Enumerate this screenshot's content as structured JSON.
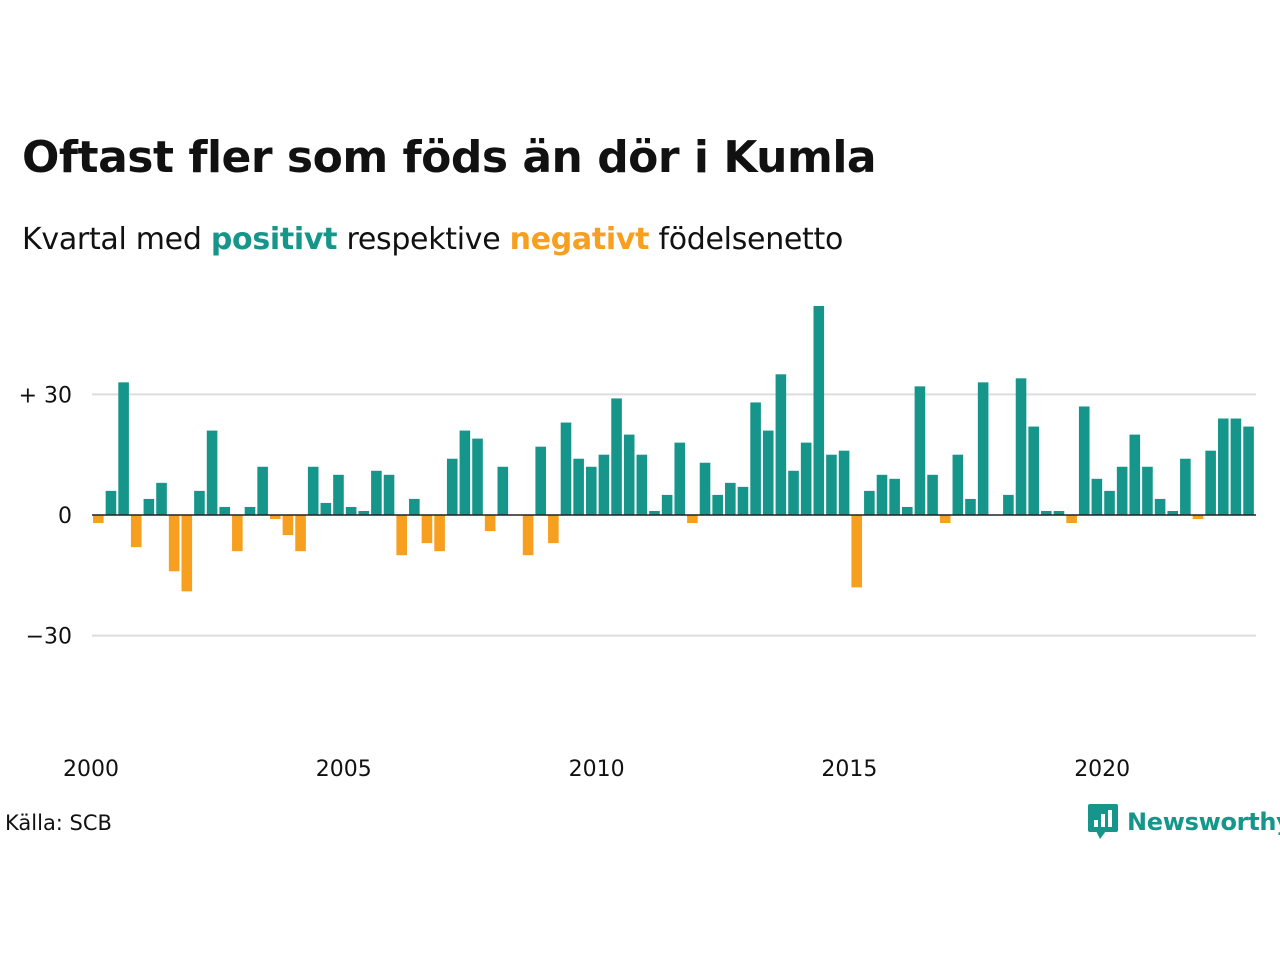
{
  "title": "Oftast fler som föds än dör i Kumla",
  "subtitle": {
    "prefix": "Kvartal med",
    "positive": "positivt",
    "middle": "respektive",
    "negative": "negativt",
    "suffix": "födelsenetto"
  },
  "source": "Källa: SCB",
  "brand": "Newsworthy",
  "colors": {
    "positive": "#16968a",
    "negative": "#f79f1f",
    "grid": "#dddddd"
  },
  "chart_data": {
    "type": "bar",
    "title": "Oftast fler som föds än dör i Kumla",
    "subtitle": "Kvartal med positivt respektive negativt födelsenetto",
    "xlabel": "",
    "ylabel": "",
    "x_start": "2000-Q1",
    "x_ticks": [
      "2000",
      "2005",
      "2010",
      "2015",
      "2020"
    ],
    "y_ticks": [
      30,
      0,
      -30
    ],
    "y_tick_labels": [
      "+ 30",
      "0",
      "−30"
    ],
    "ylim": [
      -50,
      55
    ],
    "grid": true,
    "values": [
      -2,
      6,
      33,
      -8,
      4,
      8,
      -14,
      -19,
      6,
      21,
      2,
      -9,
      2,
      12,
      -1,
      -5,
      -9,
      12,
      3,
      10,
      2,
      1,
      11,
      10,
      -10,
      4,
      -7,
      -9,
      14,
      21,
      19,
      -4,
      12,
      0,
      -10,
      17,
      -7,
      23,
      14,
      12,
      15,
      29,
      20,
      15,
      1,
      5,
      18,
      -2,
      13,
      5,
      8,
      7,
      28,
      21,
      35,
      11,
      18,
      52,
      15,
      16,
      -18,
      6,
      10,
      9,
      2,
      32,
      10,
      -2,
      15,
      4,
      33,
      0,
      5,
      34,
      22,
      1,
      1,
      -2,
      27,
      9,
      6,
      12,
      20,
      12,
      4,
      1,
      14,
      -1,
      16,
      24,
      24,
      22
    ]
  }
}
